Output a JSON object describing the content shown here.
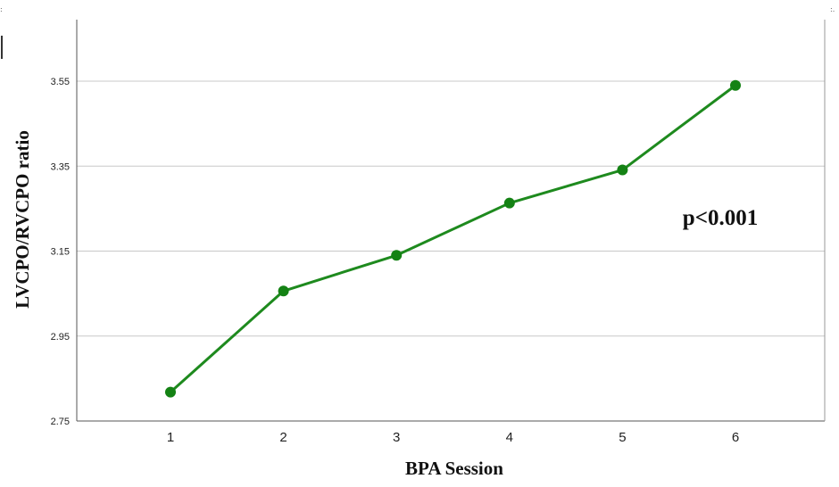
{
  "chart_data": {
    "type": "line",
    "title": "",
    "xlabel": "BPA Session",
    "ylabel": "LVCPO/RVCPO ratio",
    "categories": [
      "1",
      "2",
      "3",
      "4",
      "5",
      "6"
    ],
    "series": [
      {
        "values": [
          2.818,
          3.056,
          3.14,
          3.263,
          3.341,
          3.54
        ]
      }
    ],
    "ylim": [
      2.75,
      3.55
    ],
    "yticks": [
      "2.75",
      "2.95",
      "3.15",
      "3.35",
      "3.55"
    ],
    "grid": true,
    "legend": "none",
    "annotation": "p<0.001",
    "colors": {
      "line": "#1e8a1e",
      "marker": "#148214",
      "grid": "#c8c8c8",
      "axis": "#555555"
    }
  }
}
